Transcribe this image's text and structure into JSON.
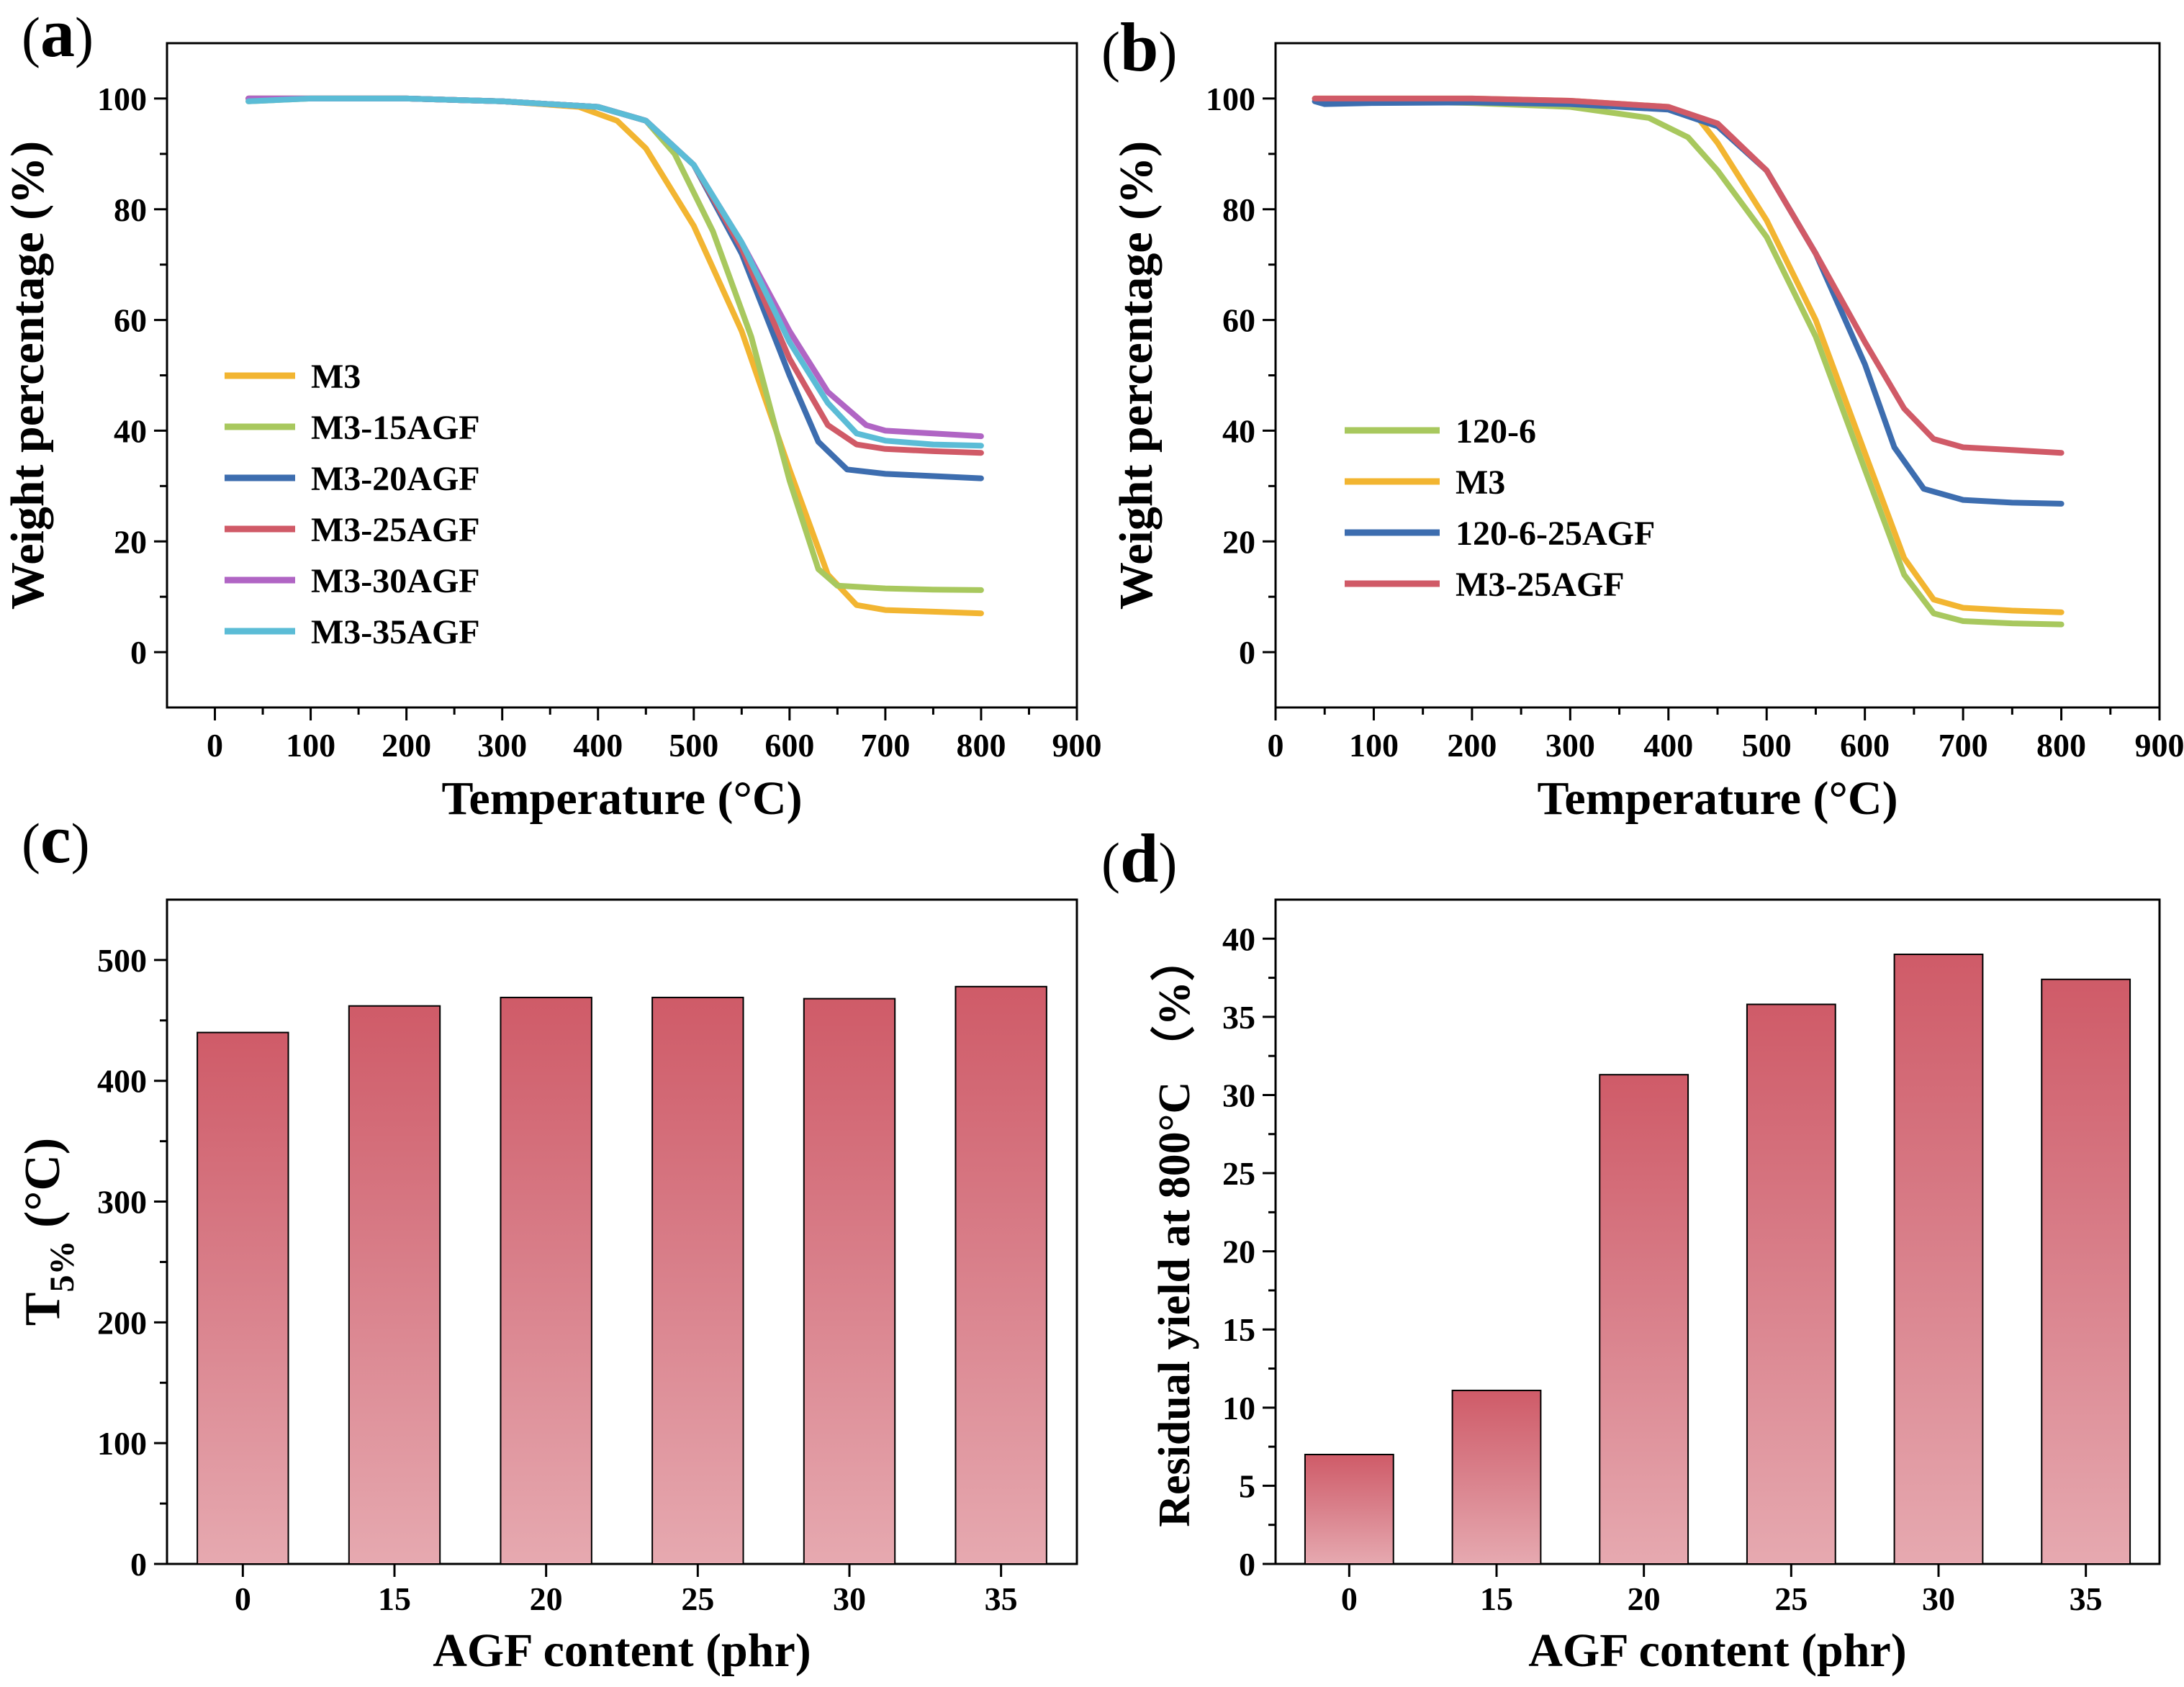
{
  "chart_data": [
    {
      "panel": "(a)",
      "type": "line",
      "xlabel": "Temperature (°C)",
      "ylabel": "Weight percentage (%)",
      "xlim": [
        -50,
        900
      ],
      "ylim": [
        -10,
        110
      ],
      "xticks": [
        0,
        100,
        200,
        300,
        400,
        500,
        600,
        700,
        800,
        900
      ],
      "yticks": [
        0,
        20,
        40,
        60,
        80,
        100
      ],
      "legend_position": "center-left",
      "series": [
        {
          "name": "M3",
          "color": "#f2b531",
          "x": [
            35,
            100,
            200,
            300,
            380,
            420,
            450,
            500,
            550,
            600,
            640,
            670,
            700,
            750,
            800
          ],
          "y": [
            100,
            100,
            100,
            99.5,
            98.5,
            96,
            91,
            77,
            58,
            33,
            14,
            8.5,
            7.6,
            7.3,
            7
          ]
        },
        {
          "name": "M3-15AGF",
          "color": "#a8c85e",
          "x": [
            35,
            100,
            200,
            300,
            400,
            450,
            480,
            520,
            560,
            600,
            630,
            650,
            700,
            750,
            800
          ],
          "y": [
            99.5,
            100,
            100,
            99.5,
            98.5,
            96,
            90,
            76,
            57,
            31,
            15,
            12,
            11.5,
            11.3,
            11.2
          ]
        },
        {
          "name": "M3-20AGF",
          "color": "#3d6daf",
          "x": [
            35,
            100,
            200,
            300,
            400,
            450,
            500,
            550,
            600,
            630,
            660,
            700,
            750,
            800
          ],
          "y": [
            100,
            100,
            100,
            99.5,
            98.5,
            96,
            88,
            72,
            50,
            38,
            33,
            32.2,
            31.8,
            31.4
          ]
        },
        {
          "name": "M3-25AGF",
          "color": "#d05a67",
          "x": [
            35,
            100,
            200,
            300,
            400,
            450,
            500,
            550,
            600,
            640,
            670,
            700,
            750,
            800
          ],
          "y": [
            100,
            100,
            100,
            99.5,
            98.5,
            96,
            88,
            73,
            53,
            41,
            37.5,
            36.7,
            36.3,
            36
          ]
        },
        {
          "name": "M3-30AGF",
          "color": "#b065c4",
          "x": [
            35,
            100,
            200,
            300,
            400,
            450,
            500,
            550,
            600,
            640,
            680,
            700,
            750,
            800
          ],
          "y": [
            100,
            100,
            100,
            99.5,
            98.5,
            96,
            88,
            74,
            58,
            47,
            41,
            40,
            39.5,
            39
          ]
        },
        {
          "name": "M3-35AGF",
          "color": "#5bbcd6",
          "x": [
            35,
            100,
            200,
            300,
            400,
            450,
            500,
            550,
            600,
            640,
            670,
            700,
            750,
            800
          ],
          "y": [
            99.5,
            100,
            100,
            99.5,
            98.5,
            96,
            88,
            74,
            56,
            45,
            39.5,
            38.2,
            37.5,
            37.3
          ]
        }
      ]
    },
    {
      "panel": "(b)",
      "type": "line",
      "xlabel": "Temperature (°C)",
      "ylabel": "Weight percentage (%)",
      "xlim": [
        0,
        900
      ],
      "ylim": [
        -10,
        110
      ],
      "xticks": [
        0,
        100,
        200,
        300,
        400,
        500,
        600,
        700,
        800,
        900
      ],
      "yticks": [
        0,
        20,
        40,
        60,
        80,
        100
      ],
      "legend_position": "center-left",
      "series": [
        {
          "name": "120-6",
          "color": "#a8c85e",
          "x": [
            40,
            100,
            200,
            300,
            380,
            420,
            450,
            500,
            550,
            600,
            640,
            670,
            700,
            750,
            800
          ],
          "y": [
            100,
            99.5,
            99.2,
            98.5,
            96.5,
            93,
            87,
            75,
            57,
            33,
            14,
            7,
            5.6,
            5.2,
            5
          ]
        },
        {
          "name": "M3",
          "color": "#f2b531",
          "x": [
            40,
            100,
            200,
            300,
            400,
            430,
            450,
            500,
            550,
            600,
            640,
            670,
            700,
            750,
            800
          ],
          "y": [
            100,
            100,
            100,
            99.6,
            98.5,
            96.5,
            92,
            78,
            60,
            36,
            17,
            9.5,
            8,
            7.5,
            7.2
          ]
        },
        {
          "name": "120-6-25AGF",
          "color": "#3d6daf",
          "x": [
            40,
            50,
            100,
            200,
            300,
            400,
            450,
            500,
            550,
            600,
            630,
            660,
            700,
            750,
            800
          ],
          "y": [
            99.5,
            99,
            99.2,
            99.3,
            99,
            98,
            95,
            87,
            72,
            52,
            37,
            29.5,
            27.5,
            27,
            26.8
          ]
        },
        {
          "name": "M3-25AGF",
          "color": "#d05a67",
          "x": [
            40,
            100,
            200,
            300,
            400,
            450,
            500,
            550,
            600,
            640,
            670,
            700,
            750,
            800
          ],
          "y": [
            100,
            100,
            100,
            99.6,
            98.5,
            95.5,
            87,
            72,
            56,
            44,
            38.5,
            37,
            36.5,
            36
          ]
        }
      ]
    },
    {
      "panel": "(c)",
      "type": "bar",
      "xlabel": "AGF content (phr)",
      "ylabel_main": "T",
      "ylabel_sub": "5%",
      "ylabel_unit": " (°C)",
      "categories": [
        "0",
        "15",
        "20",
        "25",
        "30",
        "35"
      ],
      "values": [
        440,
        462,
        469,
        469,
        468,
        478
      ],
      "ylim": [
        0,
        550
      ],
      "yticks": [
        0,
        100,
        200,
        300,
        400,
        500
      ]
    },
    {
      "panel": "(d)",
      "type": "bar",
      "xlabel": "AGF content (phr)",
      "ylabel": "Residual yield at 800°C （%）",
      "categories": [
        "0",
        "15",
        "20",
        "25",
        "30",
        "35"
      ],
      "values": [
        7,
        11.1,
        31.3,
        35.8,
        39,
        37.4
      ],
      "ylim": [
        0,
        42.5
      ],
      "yticks": [
        0,
        5,
        10,
        15,
        20,
        25,
        30,
        35,
        40
      ]
    }
  ]
}
